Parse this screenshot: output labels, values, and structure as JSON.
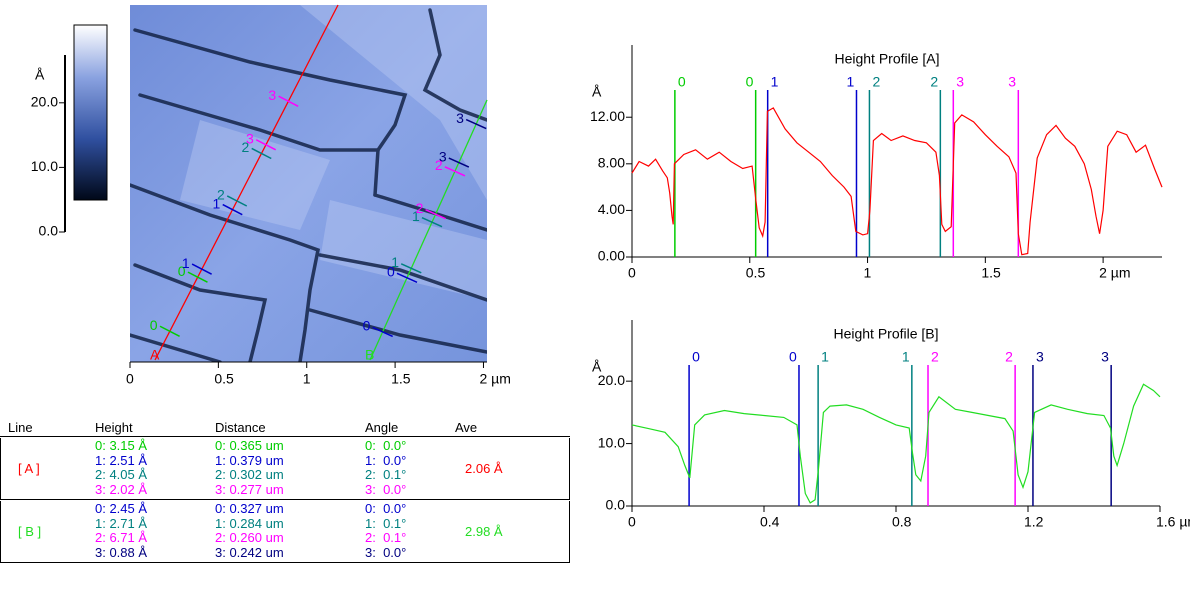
{
  "image": {
    "unit": "Å",
    "colorbar_ticks": [
      {
        "value": 0,
        "label": "0.0"
      },
      {
        "value": 10,
        "label": "10.0"
      },
      {
        "value": 20,
        "label": "20.0"
      }
    ],
    "clim": [
      0,
      27.4
    ],
    "xlim": [
      0,
      2.02
    ],
    "xticks": [
      0,
      0.5,
      1,
      1.5,
      {
        "value": 2,
        "label": "2 µm"
      }
    ],
    "line_labels": [
      "A",
      "B"
    ]
  },
  "profiles": [
    {
      "type": "line",
      "title": "Height Profile [A]",
      "unit": "Å",
      "color": "#ff0000",
      "xlim": [
        0,
        2.25
      ],
      "ylim": [
        0,
        18.2
      ],
      "xticks": [
        0,
        0.5,
        1,
        1.5,
        {
          "value": 2,
          "label": "2 µm"
        }
      ],
      "yticks": [
        {
          "value": 0,
          "label": "0.00"
        },
        {
          "value": 4,
          "label": "4.00"
        },
        {
          "value": 8,
          "label": "8.00"
        },
        {
          "value": 12,
          "label": "12.00"
        }
      ],
      "cursors": [
        {
          "label": "0",
          "x": 0.182,
          "color": "#00cc00"
        },
        {
          "label": "0",
          "x": 0.525,
          "color": "#00cc00"
        },
        {
          "label": "1",
          "x": 0.576,
          "color": "#0000cc"
        },
        {
          "label": "1",
          "x": 0.953,
          "color": "#0000cc"
        },
        {
          "label": "2",
          "x": 1.008,
          "color": "#008080"
        },
        {
          "label": "2",
          "x": 1.309,
          "color": "#008080"
        },
        {
          "label": "3",
          "x": 1.364,
          "color": "#ff00ff"
        },
        {
          "label": "3",
          "x": 1.64,
          "color": "#ff00ff"
        }
      ],
      "x": [
        0,
        0.03,
        0.07,
        0.1,
        0.13,
        0.15,
        0.16,
        0.17,
        0.175,
        0.18,
        0.22,
        0.27,
        0.32,
        0.37,
        0.42,
        0.47,
        0.51,
        0.525,
        0.54,
        0.555,
        0.565,
        0.575,
        0.6,
        0.65,
        0.7,
        0.75,
        0.8,
        0.85,
        0.9,
        0.93,
        0.95,
        0.98,
        1.0,
        1.01,
        1.025,
        1.06,
        1.1,
        1.15,
        1.2,
        1.25,
        1.29,
        1.305,
        1.315,
        1.33,
        1.355,
        1.37,
        1.4,
        1.45,
        1.5,
        1.55,
        1.6,
        1.63,
        1.64,
        1.655,
        1.68,
        1.69,
        1.72,
        1.76,
        1.8,
        1.84,
        1.88,
        1.92,
        1.95,
        1.97,
        1.985,
        2.0,
        2.02,
        2.06,
        2.1,
        2.14,
        2.18,
        2.22,
        2.25
      ],
      "values": [
        7.2,
        8.2,
        7.8,
        8.4,
        7.4,
        6.8,
        5.5,
        3.5,
        2.8,
        8.0,
        8.8,
        9.2,
        8.4,
        9.0,
        8.2,
        7.6,
        7.8,
        5.0,
        2.5,
        1.8,
        3.0,
        12.5,
        12.8,
        11.0,
        9.8,
        9.0,
        8.2,
        7.0,
        6.0,
        5.2,
        2.2,
        1.9,
        2.0,
        4.0,
        10.0,
        10.6,
        10.0,
        10.4,
        10.0,
        9.8,
        9.0,
        7.0,
        2.8,
        2.2,
        2.6,
        11.5,
        12.2,
        11.6,
        10.5,
        9.5,
        8.6,
        7.2,
        2.0,
        0.2,
        0.3,
        3.0,
        8.5,
        10.5,
        11.3,
        10.2,
        9.5,
        8.0,
        5.8,
        3.5,
        2.0,
        4.0,
        9.5,
        10.8,
        10.5,
        9.0,
        9.6,
        7.5,
        6.0
      ]
    },
    {
      "type": "line",
      "title": "Height Profile [B]",
      "unit": "Å",
      "color": "#22dd22",
      "xlim": [
        0,
        1.6
      ],
      "ylim": [
        0,
        29.8
      ],
      "xticks": [
        0,
        0.4,
        0.8,
        1.2,
        {
          "value": 1.6,
          "label": "1.6 µm"
        }
      ],
      "yticks": [
        {
          "value": 0,
          "label": "0.0"
        },
        {
          "value": 10,
          "label": "10.0"
        },
        {
          "value": 20,
          "label": "20.0"
        }
      ],
      "cursors": [
        {
          "label": "0",
          "x": 0.173,
          "color": "#0000cc"
        },
        {
          "label": "0",
          "x": 0.506,
          "color": "#0000cc"
        },
        {
          "label": "1",
          "x": 0.564,
          "color": "#008080"
        },
        {
          "label": "1",
          "x": 0.848,
          "color": "#008080"
        },
        {
          "label": "2",
          "x": 0.897,
          "color": "#ff00ff"
        },
        {
          "label": "2",
          "x": 1.161,
          "color": "#ff00ff"
        },
        {
          "label": "3",
          "x": 1.215,
          "color": "#000080"
        },
        {
          "label": "3",
          "x": 1.452,
          "color": "#000080"
        }
      ],
      "x": [
        0,
        0.05,
        0.1,
        0.14,
        0.16,
        0.175,
        0.19,
        0.22,
        0.28,
        0.34,
        0.4,
        0.46,
        0.5,
        0.51,
        0.525,
        0.54,
        0.555,
        0.565,
        0.58,
        0.6,
        0.65,
        0.7,
        0.75,
        0.8,
        0.84,
        0.85,
        0.86,
        0.875,
        0.89,
        0.9,
        0.93,
        0.98,
        1.03,
        1.08,
        1.13,
        1.155,
        1.17,
        1.185,
        1.2,
        1.22,
        1.27,
        1.32,
        1.38,
        1.43,
        1.45,
        1.46,
        1.47,
        1.49,
        1.52,
        1.55,
        1.58,
        1.6
      ],
      "values": [
        13,
        12.4,
        11.8,
        9.5,
        6.5,
        4.5,
        13.0,
        14.6,
        15.3,
        14.8,
        14.5,
        14.2,
        13.0,
        8.0,
        2.0,
        0.5,
        1.0,
        6,
        15,
        16.0,
        16.2,
        15.5,
        14.2,
        13.0,
        12.5,
        8.5,
        5.0,
        4.0,
        8,
        15,
        17.5,
        15.5,
        15.0,
        14.5,
        14.0,
        12,
        5.0,
        3.0,
        5.5,
        15,
        16.2,
        15.5,
        14.8,
        14.5,
        12.5,
        8,
        6.5,
        10,
        16,
        19.5,
        18.5,
        17.5
      ]
    }
  ],
  "table": {
    "headers": [
      "Line",
      "Height",
      "Distance",
      "Angle",
      "Ave"
    ],
    "rows": [
      {
        "line": "[ A ]",
        "height": [
          "0: 3.15 Å",
          "1: 2.51 Å",
          "2: 4.05 Å",
          "3: 2.02 Å"
        ],
        "distance": [
          "0: 0.365 um",
          "1: 0.379 um",
          "2: 0.302 um",
          "3: 0.277 um"
        ],
        "angle": [
          "0:  0.0°",
          "1:  0.0°",
          "2:  0.1°",
          "3:  0.0°"
        ],
        "ave": "2.06 Å"
      },
      {
        "line": "[ B ]",
        "height": [
          "0: 2.45 Å",
          "1: 2.71 Å",
          "2: 6.71 Å",
          "3: 0.88 Å"
        ],
        "distance": [
          "0: 0.327 um",
          "1: 0.284 um",
          "2: 0.260 um",
          "3: 0.242 um"
        ],
        "angle": [
          "0:  0.0°",
          "1:  0.1°",
          "2:  0.1°",
          "3:  0.0°"
        ],
        "ave": "2.98 Å"
      }
    ]
  }
}
